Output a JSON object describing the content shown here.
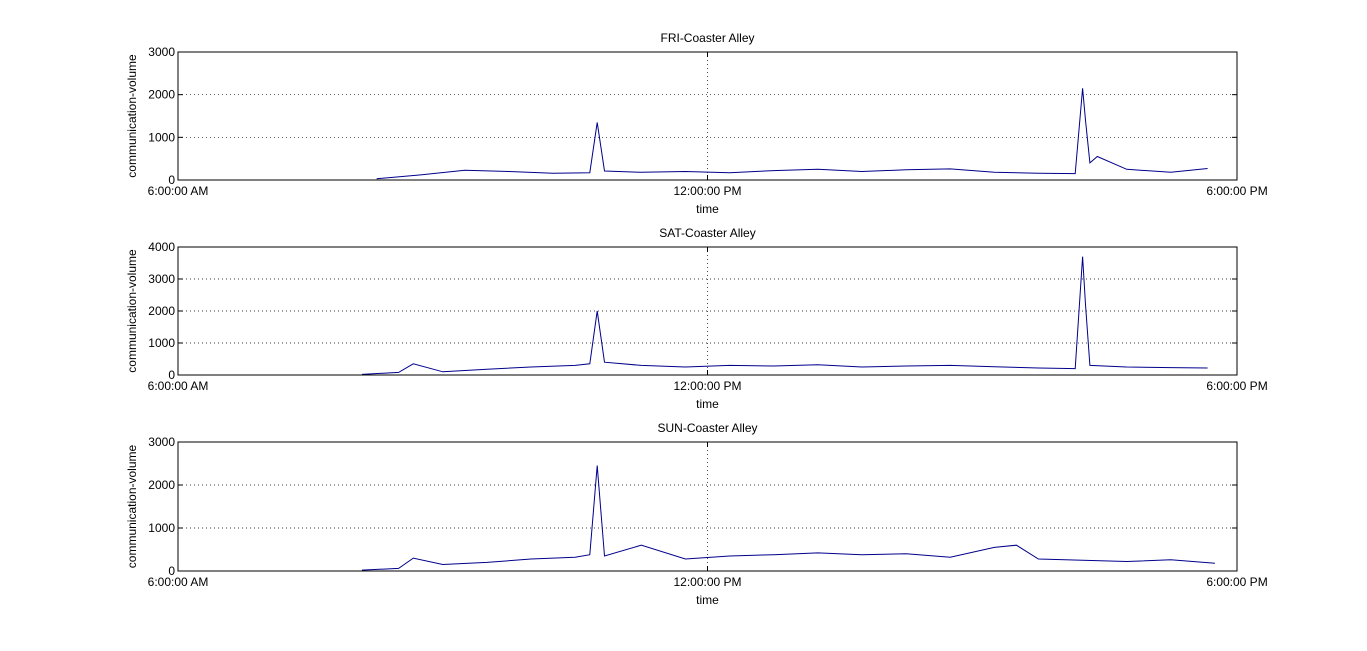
{
  "colors": {
    "line": "#00008b",
    "axis": "#000000",
    "grid": "#000000"
  },
  "chart_data": [
    {
      "type": "line",
      "title": "FRI-Coaster Alley",
      "xlabel": "time",
      "ylabel": "communication-volume",
      "x_ticks": [
        "6:00:00 AM",
        "12:00:00 PM",
        "6:00:00 PM"
      ],
      "xlim": [
        "6:00:00 AM",
        "6:00:00 PM"
      ],
      "ylim": [
        0,
        3000
      ],
      "y_ticks": [
        0,
        1000,
        2000,
        3000
      ],
      "grid": true,
      "series": [
        {
          "x": [
            "8:15 AM",
            "8:45 AM",
            "9:15 AM",
            "9:45 AM",
            "10:15 AM",
            "10:40 AM",
            "10:45 AM",
            "10:50 AM",
            "11:15 AM",
            "11:45 AM",
            "12:15 PM",
            "12:45 PM",
            "1:15 PM",
            "1:45 PM",
            "2:15 PM",
            "2:45 PM",
            "3:15 PM",
            "3:45 PM",
            "4:10 PM",
            "4:15 PM",
            "4:17 PM",
            "4:20 PM",
            "4:25 PM",
            "4:45 PM",
            "5:15 PM",
            "5:40 PM"
          ],
          "y": [
            30,
            120,
            230,
            200,
            160,
            170,
            1350,
            210,
            180,
            200,
            170,
            220,
            250,
            200,
            240,
            260,
            180,
            160,
            150,
            2150,
            1400,
            400,
            550,
            250,
            180,
            270
          ]
        }
      ]
    },
    {
      "type": "line",
      "title": "SAT-Coaster Alley",
      "xlabel": "time",
      "ylabel": "communication-volume",
      "x_ticks": [
        "6:00:00 AM",
        "12:00:00 PM",
        "6:00:00 PM"
      ],
      "xlim": [
        "6:00:00 AM",
        "6:00:00 PM"
      ],
      "ylim": [
        0,
        4000
      ],
      "y_ticks": [
        0,
        1000,
        2000,
        3000,
        4000
      ],
      "grid": true,
      "series": [
        {
          "x": [
            "8:05 AM",
            "8:30 AM",
            "8:40 AM",
            "9:00 AM",
            "9:30 AM",
            "10:00 AM",
            "10:30 AM",
            "10:40 AM",
            "10:45 AM",
            "10:50 AM",
            "11:15 AM",
            "11:45 AM",
            "12:15 PM",
            "12:45 PM",
            "1:15 PM",
            "1:45 PM",
            "2:15 PM",
            "2:45 PM",
            "3:15 PM",
            "3:45 PM",
            "4:10 PM",
            "4:15 PM",
            "4:17 PM",
            "4:20 PM",
            "4:45 PM",
            "5:15 PM",
            "5:40 PM"
          ],
          "y": [
            20,
            80,
            350,
            100,
            180,
            250,
            300,
            350,
            2000,
            400,
            300,
            250,
            300,
            280,
            320,
            250,
            280,
            300,
            260,
            220,
            200,
            3700,
            2200,
            300,
            250,
            230,
            220
          ]
        }
      ]
    },
    {
      "type": "line",
      "title": "SUN-Coaster Alley",
      "xlabel": "time",
      "ylabel": "communication-volume",
      "x_ticks": [
        "6:00:00 AM",
        "12:00:00 PM",
        "6:00:00 PM"
      ],
      "xlim": [
        "6:00:00 AM",
        "6:00:00 PM"
      ],
      "ylim": [
        0,
        3000
      ],
      "y_ticks": [
        0,
        1000,
        2000,
        3000
      ],
      "grid": true,
      "series": [
        {
          "x": [
            "8:05 AM",
            "8:30 AM",
            "8:40 AM",
            "9:00 AM",
            "9:30 AM",
            "10:00 AM",
            "10:30 AM",
            "10:40 AM",
            "10:45 AM",
            "10:50 AM",
            "11:15 AM",
            "11:45 AM",
            "12:15 PM",
            "12:45 PM",
            "1:15 PM",
            "1:45 PM",
            "2:15 PM",
            "2:45 PM",
            "3:15 PM",
            "3:30 PM",
            "3:45 PM",
            "4:15 PM",
            "4:45 PM",
            "5:15 PM",
            "5:45 PM"
          ],
          "y": [
            20,
            60,
            300,
            150,
            200,
            280,
            320,
            380,
            2450,
            350,
            600,
            280,
            350,
            380,
            420,
            380,
            400,
            320,
            550,
            600,
            280,
            250,
            220,
            260,
            180
          ]
        }
      ]
    }
  ]
}
